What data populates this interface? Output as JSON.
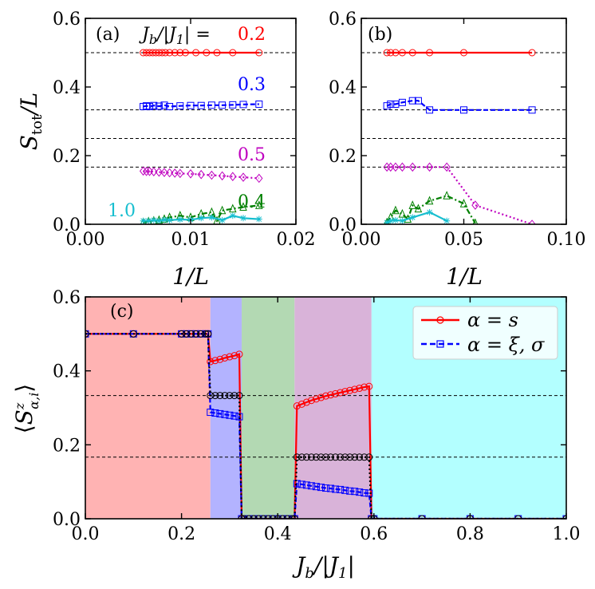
{
  "chart_data": [
    {
      "panel": "(a)",
      "type": "line",
      "xlabel": "1/L",
      "ylabel": "S_tot/L",
      "xlim": [
        0,
        0.02
      ],
      "ylim": [
        0,
        0.6
      ],
      "xticks": [
        "0.00",
        "0.01",
        "0.02"
      ],
      "yticks": [
        "0.0",
        "0.2",
        "0.4",
        "0.6"
      ],
      "reference_lines": [
        0.5,
        0.3333,
        0.25,
        0.1667
      ],
      "header": "J_b/|J_1| =",
      "series": [
        {
          "name": "0.2",
          "color": "#ff0000",
          "marker": "circle",
          "x": [
            0.0055,
            0.0058,
            0.0061,
            0.0064,
            0.0067,
            0.007,
            0.0073,
            0.0076,
            0.008,
            0.0085,
            0.009,
            0.0095,
            0.0105,
            0.0115,
            0.0125,
            0.014,
            0.0165
          ],
          "y": [
            0.5,
            0.5,
            0.5,
            0.5,
            0.5,
            0.5,
            0.5,
            0.5,
            0.5,
            0.5,
            0.5,
            0.5,
            0.5,
            0.5,
            0.5,
            0.5,
            0.5
          ]
        },
        {
          "name": "0.3",
          "color": "#0000ff",
          "marker": "square",
          "x": [
            0.0055,
            0.0058,
            0.0061,
            0.0065,
            0.007,
            0.0075,
            0.008,
            0.009,
            0.01,
            0.011,
            0.012,
            0.013,
            0.014,
            0.015,
            0.0165
          ],
          "y": [
            0.343,
            0.345,
            0.343,
            0.346,
            0.344,
            0.347,
            0.343,
            0.345,
            0.346,
            0.346,
            0.347,
            0.347,
            0.348,
            0.349,
            0.35
          ]
        },
        {
          "name": "0.5",
          "color": "#bf00bf",
          "marker": "diamond",
          "x": [
            0.0055,
            0.0058,
            0.0061,
            0.0065,
            0.007,
            0.0075,
            0.008,
            0.0085,
            0.009,
            0.01,
            0.011,
            0.012,
            0.013,
            0.014,
            0.015,
            0.0165
          ],
          "y": [
            0.155,
            0.154,
            0.154,
            0.153,
            0.152,
            0.151,
            0.15,
            0.149,
            0.148,
            0.147,
            0.145,
            0.143,
            0.141,
            0.139,
            0.137,
            0.134
          ]
        },
        {
          "name": "0.4",
          "color": "#008000",
          "marker": "triangle",
          "x": [
            0.0055,
            0.006,
            0.0065,
            0.007,
            0.0075,
            0.008,
            0.009,
            0.01,
            0.011,
            0.012,
            0.0125,
            0.013,
            0.014,
            0.015,
            0.0165
          ],
          "y": [
            0.005,
            0.008,
            0.01,
            0.012,
            0.015,
            0.02,
            0.025,
            0.02,
            0.03,
            0.035,
            0.01,
            0.04,
            0.045,
            0.05,
            0.055
          ]
        },
        {
          "name": "1.0",
          "color": "#17becf",
          "marker": "star",
          "x": [
            0.0055,
            0.006,
            0.0065,
            0.007,
            0.0075,
            0.008,
            0.009,
            0.01,
            0.011,
            0.012,
            0.013,
            0.014,
            0.015,
            0.0165
          ],
          "y": [
            0.01,
            0.01,
            0.012,
            0.01,
            0.013,
            0.012,
            0.014,
            0.013,
            0.018,
            0.02,
            0.012,
            0.025,
            0.018,
            0.015
          ]
        }
      ]
    },
    {
      "panel": "(b)",
      "type": "line",
      "xlabel": "1/L",
      "xlim": [
        0,
        0.1
      ],
      "ylim": [
        0,
        0.6
      ],
      "xticks": [
        "0.00",
        "0.05",
        "0.10"
      ],
      "yticks": [
        "0.0",
        "0.2",
        "0.4",
        "0.6"
      ],
      "reference_lines": [
        0.5,
        0.3333,
        0.25,
        0.1667
      ],
      "series": [
        {
          "name": "0.2",
          "color": "#ff0000",
          "marker": "circle",
          "x": [
            0.0125,
            0.0143,
            0.0167,
            0.02,
            0.025,
            0.0333,
            0.05,
            0.0833
          ],
          "y": [
            0.5,
            0.5,
            0.5,
            0.5,
            0.5,
            0.5,
            0.5,
            0.5
          ]
        },
        {
          "name": "0.3",
          "color": "#0000ff",
          "marker": "square",
          "x": [
            0.0125,
            0.0143,
            0.0167,
            0.02,
            0.025,
            0.0278,
            0.0333,
            0.05,
            0.0833
          ],
          "y": [
            0.345,
            0.35,
            0.35,
            0.355,
            0.36,
            0.36,
            0.333,
            0.333,
            0.333
          ]
        },
        {
          "name": "0.5",
          "color": "#bf00bf",
          "marker": "diamond",
          "x": [
            0.0125,
            0.0143,
            0.0167,
            0.02,
            0.025,
            0.0333,
            0.0417,
            0.0556,
            0.0833
          ],
          "y": [
            0.1667,
            0.1667,
            0.1667,
            0.1667,
            0.1667,
            0.1667,
            0.1667,
            0.0556,
            0.0
          ]
        },
        {
          "name": "0.4",
          "color": "#008000",
          "marker": "triangle",
          "x": [
            0.0125,
            0.0143,
            0.0167,
            0.02,
            0.0227,
            0.025,
            0.0278,
            0.0333,
            0.0417,
            0.05,
            0.0556
          ],
          "y": [
            0.005,
            0.02,
            0.04,
            0.03,
            0.015,
            0.055,
            0.045,
            0.068,
            0.083,
            0.06,
            0.003
          ]
        },
        {
          "name": "1.0",
          "color": "#17becf",
          "marker": "star",
          "x": [
            0.0125,
            0.0143,
            0.0167,
            0.02,
            0.025,
            0.0333,
            0.0417
          ],
          "y": [
            0.005,
            0.01,
            0.012,
            0.01,
            0.02,
            0.035,
            0.01
          ]
        }
      ]
    },
    {
      "panel": "(c)",
      "type": "line",
      "xlabel": "J_b/|J_1|",
      "ylabel": "<S^z_{alpha,i}>",
      "xlim": [
        0,
        1.0
      ],
      "ylim": [
        0,
        0.6
      ],
      "xticks": [
        "0.0",
        "0.2",
        "0.4",
        "0.6",
        "0.8",
        "1.0"
      ],
      "yticks": [
        "0.0",
        "0.2",
        "0.4",
        "0.6"
      ],
      "reference_lines": [
        0.3333,
        0.1667
      ],
      "regions": [
        {
          "x0": 0,
          "x1": 0.26,
          "color": "#ffb3b3"
        },
        {
          "x0": 0.26,
          "x1": 0.325,
          "color": "#b3b3ff"
        },
        {
          "x0": 0.325,
          "x1": 0.435,
          "color": "#b3d9b3"
        },
        {
          "x0": 0.435,
          "x1": 0.595,
          "color": "#d9b3d9"
        },
        {
          "x0": 0.595,
          "x1": 1.0,
          "color": "#b3ffff"
        }
      ],
      "legend": {
        "location": "top-right",
        "entries": [
          "α = s",
          "α = ξ, σ"
        ]
      },
      "series": [
        {
          "name": "α = s",
          "color": "#ff0000",
          "marker": "circle",
          "style": "solid",
          "x": [
            0,
            0.1,
            0.2,
            0.21,
            0.22,
            0.23,
            0.24,
            0.25,
            0.255,
            0.26,
            0.27,
            0.28,
            0.29,
            0.3,
            0.31,
            0.32,
            0.325,
            0.33,
            0.34,
            0.35,
            0.36,
            0.37,
            0.38,
            0.39,
            0.4,
            0.41,
            0.42,
            0.43,
            0.435,
            0.44,
            0.45,
            0.46,
            0.47,
            0.48,
            0.49,
            0.5,
            0.51,
            0.52,
            0.53,
            0.54,
            0.55,
            0.56,
            0.57,
            0.58,
            0.59,
            0.595,
            0.6,
            0.7,
            0.8,
            0.9,
            1.0
          ],
          "y": [
            0.5,
            0.5,
            0.5,
            0.5,
            0.5,
            0.5,
            0.5,
            0.5,
            0.5,
            0.425,
            0.428,
            0.431,
            0.435,
            0.438,
            0.441,
            0.445,
            0.0,
            0.0,
            0.0,
            0.0,
            0.0,
            0.0,
            0.0,
            0.0,
            0.0,
            0.0,
            0.0,
            0.0,
            0.0,
            0.305,
            0.31,
            0.315,
            0.32,
            0.324,
            0.328,
            0.332,
            0.335,
            0.338,
            0.341,
            0.344,
            0.347,
            0.35,
            0.353,
            0.356,
            0.358,
            0.0,
            0.0,
            0.0,
            0.0,
            0.0,
            0.0
          ]
        },
        {
          "name": "α = ξ, σ",
          "color": "#0000ff",
          "marker": "square",
          "style": "dashed",
          "x": [
            0,
            0.1,
            0.2,
            0.21,
            0.22,
            0.23,
            0.24,
            0.25,
            0.255,
            0.26,
            0.27,
            0.28,
            0.29,
            0.3,
            0.31,
            0.32,
            0.325,
            0.33,
            0.34,
            0.35,
            0.36,
            0.37,
            0.38,
            0.39,
            0.4,
            0.41,
            0.42,
            0.43,
            0.435,
            0.44,
            0.45,
            0.46,
            0.47,
            0.48,
            0.49,
            0.5,
            0.51,
            0.52,
            0.53,
            0.54,
            0.55,
            0.56,
            0.57,
            0.58,
            0.59,
            0.595,
            0.6,
            0.7,
            0.8,
            0.9,
            1.0
          ],
          "y": [
            0.5,
            0.5,
            0.5,
            0.5,
            0.5,
            0.5,
            0.5,
            0.5,
            0.5,
            0.288,
            0.286,
            0.284,
            0.282,
            0.28,
            0.278,
            0.276,
            0.0,
            0.0,
            0.0,
            0.0,
            0.0,
            0.0,
            0.0,
            0.0,
            0.0,
            0.0,
            0.0,
            0.0,
            0.0,
            0.095,
            0.093,
            0.091,
            0.089,
            0.087,
            0.085,
            0.083,
            0.082,
            0.08,
            0.079,
            0.077,
            0.075,
            0.074,
            0.072,
            0.07,
            0.069,
            0.0,
            0.0,
            0.0,
            0.0,
            0.0,
            0.0
          ]
        },
        {
          "name": "",
          "color": "#000000",
          "marker": "hexagon",
          "style": "dotted",
          "x": [
            0,
            0.1,
            0.2,
            0.21,
            0.22,
            0.23,
            0.24,
            0.25,
            0.255,
            0.26,
            0.27,
            0.28,
            0.29,
            0.3,
            0.31,
            0.32,
            0.325,
            0.33,
            0.34,
            0.35,
            0.36,
            0.37,
            0.38,
            0.39,
            0.4,
            0.41,
            0.42,
            0.43,
            0.435,
            0.44,
            0.45,
            0.46,
            0.47,
            0.48,
            0.49,
            0.5,
            0.51,
            0.52,
            0.53,
            0.54,
            0.55,
            0.56,
            0.57,
            0.58,
            0.59,
            0.595,
            0.6,
            0.7,
            0.8,
            0.9,
            1.0
          ],
          "y": [
            0.5,
            0.5,
            0.5,
            0.5,
            0.5,
            0.5,
            0.5,
            0.5,
            0.5,
            0.3333,
            0.3333,
            0.3333,
            0.3333,
            0.3333,
            0.3333,
            0.3333,
            0.0,
            0.0,
            0.0,
            0.0,
            0.0,
            0.0,
            0.0,
            0.0,
            0.0,
            0.0,
            0.0,
            0.0,
            0.0,
            0.1667,
            0.1667,
            0.1667,
            0.1667,
            0.1667,
            0.1667,
            0.1667,
            0.1667,
            0.1667,
            0.1667,
            0.1667,
            0.1667,
            0.1667,
            0.1667,
            0.1667,
            0.1667,
            0.0,
            0.0,
            0.0,
            0.0,
            0.0,
            0.0
          ]
        }
      ]
    }
  ]
}
